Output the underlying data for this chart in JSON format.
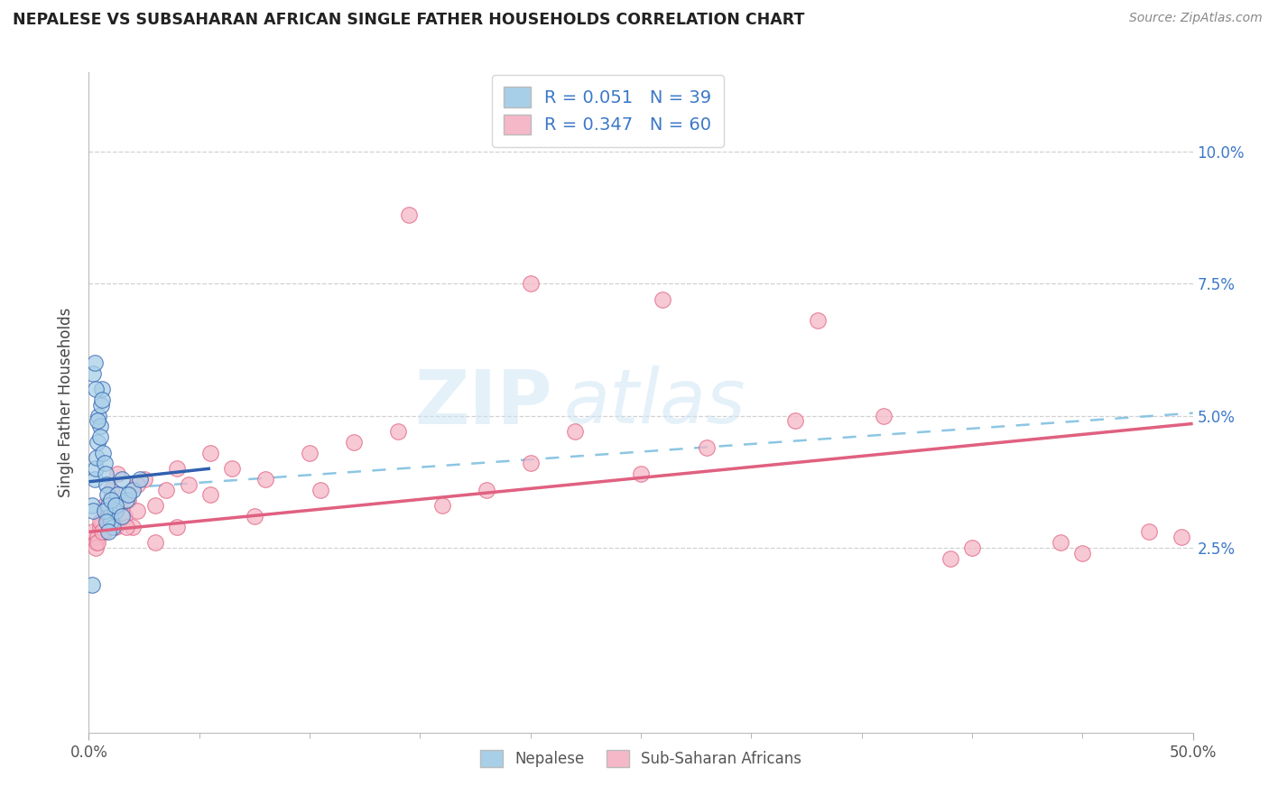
{
  "title": "NEPALESE VS SUBSAHARAN AFRICAN SINGLE FATHER HOUSEHOLDS CORRELATION CHART",
  "source": "Source: ZipAtlas.com",
  "ylabel": "Single Father Households",
  "ytick_labels": [
    "2.5%",
    "5.0%",
    "7.5%",
    "10.0%"
  ],
  "ytick_values": [
    2.5,
    5.0,
    7.5,
    10.0
  ],
  "xlim": [
    0.0,
    50.0
  ],
  "ylim": [
    -1.0,
    11.5
  ],
  "legend_label1": "R = 0.051   N = 39",
  "legend_label2": "R = 0.347   N = 60",
  "color_blue": "#a8cfe8",
  "color_pink": "#f5b8c8",
  "color_blue_line": "#3060b0",
  "color_pink_line": "#e06080",
  "color_dashed": "#80c0e0",
  "watermark_zip": "ZIP",
  "watermark_atlas": "atlas",
  "nepalese_x": [
    0.15,
    0.2,
    0.25,
    0.3,
    0.35,
    0.4,
    0.45,
    0.5,
    0.55,
    0.6,
    0.65,
    0.7,
    0.75,
    0.8,
    0.85,
    0.9,
    0.95,
    1.0,
    1.1,
    1.2,
    1.3,
    1.5,
    1.7,
    2.0,
    2.3,
    0.2,
    0.3,
    0.4,
    0.5,
    0.6,
    0.7,
    0.8,
    0.9,
    1.0,
    1.2,
    1.5,
    1.8,
    0.25,
    0.15
  ],
  "nepalese_y": [
    3.3,
    3.2,
    3.8,
    4.0,
    4.2,
    4.5,
    5.0,
    4.8,
    5.2,
    5.5,
    4.3,
    4.1,
    3.9,
    3.7,
    3.5,
    3.3,
    3.1,
    3.0,
    2.9,
    3.2,
    3.5,
    3.8,
    3.4,
    3.6,
    3.8,
    5.8,
    5.5,
    4.9,
    4.6,
    5.3,
    3.2,
    3.0,
    2.8,
    3.4,
    3.3,
    3.1,
    3.5,
    6.0,
    1.8
  ],
  "subsaharan_x": [
    0.2,
    0.3,
    0.4,
    0.5,
    0.6,
    0.7,
    0.8,
    0.9,
    1.0,
    1.1,
    1.2,
    1.4,
    1.6,
    1.8,
    2.0,
    2.2,
    2.5,
    3.0,
    3.5,
    4.0,
    4.5,
    5.5,
    6.5,
    8.0,
    10.0,
    12.0,
    14.0,
    16.0,
    18.0,
    20.0,
    22.0,
    25.0,
    28.0,
    32.0,
    36.0,
    40.0,
    44.0,
    48.0,
    49.5,
    0.3,
    0.5,
    0.7,
    1.0,
    1.3,
    1.7,
    2.2,
    3.0,
    4.0,
    5.5,
    7.5,
    10.5,
    14.5,
    20.0,
    26.0,
    33.0,
    39.0,
    45.0,
    0.4,
    0.6,
    0.9
  ],
  "subsaharan_y": [
    2.8,
    2.6,
    2.7,
    2.9,
    3.0,
    2.8,
    3.1,
    2.9,
    3.2,
    3.0,
    2.9,
    3.3,
    3.1,
    3.4,
    2.9,
    3.2,
    3.8,
    3.3,
    3.6,
    4.0,
    3.7,
    3.5,
    4.0,
    3.8,
    4.3,
    4.5,
    4.7,
    3.3,
    3.6,
    4.1,
    4.7,
    3.9,
    4.4,
    4.9,
    5.0,
    2.5,
    2.6,
    2.8,
    2.7,
    2.5,
    3.0,
    3.3,
    3.6,
    3.9,
    2.9,
    3.7,
    2.6,
    2.9,
    4.3,
    3.1,
    3.6,
    8.8,
    7.5,
    7.2,
    6.8,
    2.3,
    2.4,
    2.6,
    2.8,
    3.1
  ],
  "blue_line_x0": 0.0,
  "blue_line_x1": 5.5,
  "blue_line_y0": 3.75,
  "blue_line_y1": 4.0,
  "pink_line_x0": 0.0,
  "pink_line_x1": 50.0,
  "pink_line_y0": 2.8,
  "pink_line_y1": 4.85,
  "dashed_line_x0": 0.5,
  "dashed_line_x1": 50.0,
  "dashed_line_y0": 3.6,
  "dashed_line_y1": 5.05
}
